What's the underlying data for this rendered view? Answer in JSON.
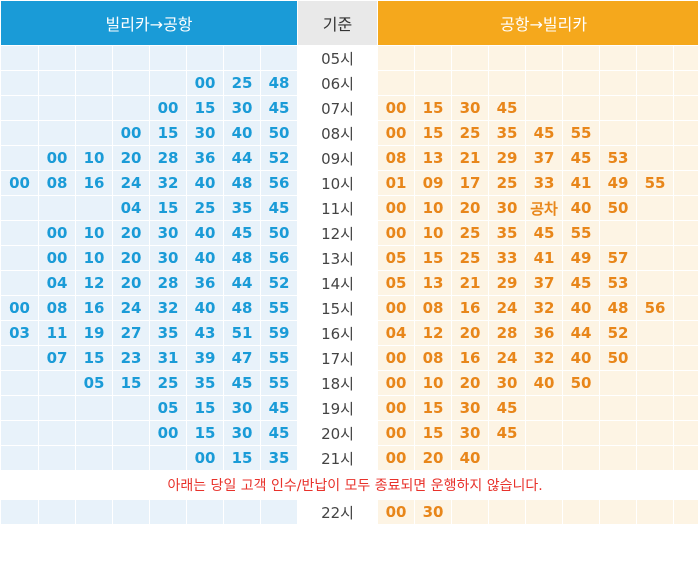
{
  "header": {
    "left_title": "빌리카→공항",
    "middle_title": "기준",
    "right_title": "공항→빌리카"
  },
  "colors": {
    "left_header": "#1a9bd7",
    "right_header": "#f5a81c",
    "left_text": "#1a9bd7",
    "right_text": "#e8861a",
    "notice_text": "#e8322b"
  },
  "rows": [
    {
      "hour": "05시",
      "to_airport": [],
      "from_airport": []
    },
    {
      "hour": "06시",
      "to_airport": [
        "00",
        "25",
        "48"
      ],
      "from_airport": []
    },
    {
      "hour": "07시",
      "to_airport": [
        "00",
        "15",
        "30",
        "45"
      ],
      "from_airport": [
        "00",
        "15",
        "30",
        "45"
      ]
    },
    {
      "hour": "08시",
      "to_airport": [
        "00",
        "15",
        "30",
        "40",
        "50"
      ],
      "from_airport": [
        "00",
        "15",
        "25",
        "35",
        "45",
        "55"
      ]
    },
    {
      "hour": "09시",
      "to_airport": [
        "00",
        "10",
        "20",
        "28",
        "36",
        "44",
        "52"
      ],
      "from_airport": [
        "08",
        "13",
        "21",
        "29",
        "37",
        "45",
        "53"
      ]
    },
    {
      "hour": "10시",
      "to_airport": [
        "00",
        "08",
        "16",
        "24",
        "32",
        "40",
        "48",
        "56"
      ],
      "from_airport": [
        "01",
        "09",
        "17",
        "25",
        "33",
        "41",
        "49",
        "55"
      ]
    },
    {
      "hour": "11시",
      "to_airport": [
        "04",
        "15",
        "25",
        "35",
        "45"
      ],
      "from_airport": [
        "00",
        "10",
        "20",
        "30",
        "공차",
        "40",
        "50"
      ]
    },
    {
      "hour": "12시",
      "to_airport": [
        "00",
        "10",
        "20",
        "30",
        "40",
        "45",
        "50"
      ],
      "from_airport": [
        "00",
        "10",
        "25",
        "35",
        "45",
        "55"
      ]
    },
    {
      "hour": "13시",
      "to_airport": [
        "00",
        "10",
        "20",
        "30",
        "40",
        "48",
        "56"
      ],
      "from_airport": [
        "05",
        "15",
        "25",
        "33",
        "41",
        "49",
        "57"
      ]
    },
    {
      "hour": "14시",
      "to_airport": [
        "04",
        "12",
        "20",
        "28",
        "36",
        "44",
        "52"
      ],
      "from_airport": [
        "05",
        "13",
        "21",
        "29",
        "37",
        "45",
        "53"
      ]
    },
    {
      "hour": "15시",
      "to_airport": [
        "00",
        "08",
        "16",
        "24",
        "32",
        "40",
        "48",
        "55"
      ],
      "from_airport": [
        "00",
        "08",
        "16",
        "24",
        "32",
        "40",
        "48",
        "56"
      ]
    },
    {
      "hour": "16시",
      "to_airport": [
        "03",
        "11",
        "19",
        "27",
        "35",
        "43",
        "51",
        "59"
      ],
      "from_airport": [
        "04",
        "12",
        "20",
        "28",
        "36",
        "44",
        "52"
      ]
    },
    {
      "hour": "17시",
      "to_airport": [
        "07",
        "15",
        "23",
        "31",
        "39",
        "47",
        "55"
      ],
      "from_airport": [
        "00",
        "08",
        "16",
        "24",
        "32",
        "40",
        "50"
      ]
    },
    {
      "hour": "18시",
      "to_airport": [
        "05",
        "15",
        "25",
        "35",
        "45",
        "55"
      ],
      "from_airport": [
        "00",
        "10",
        "20",
        "30",
        "40",
        "50"
      ]
    },
    {
      "hour": "19시",
      "to_airport": [
        "05",
        "15",
        "30",
        "45"
      ],
      "from_airport": [
        "00",
        "15",
        "30",
        "45"
      ]
    },
    {
      "hour": "20시",
      "to_airport": [
        "00",
        "15",
        "30",
        "45"
      ],
      "from_airport": [
        "00",
        "15",
        "30",
        "45"
      ]
    },
    {
      "hour": "21시",
      "to_airport": [
        "00",
        "15",
        "35"
      ],
      "from_airport": [
        "00",
        "20",
        "40"
      ]
    }
  ],
  "notice": "아래는 당일 고객 인수/반납이 모두 종료되면 운행하지 않습니다.",
  "last_row": {
    "hour": "22시",
    "to_airport": [],
    "from_airport": [
      "00",
      "30"
    ]
  }
}
